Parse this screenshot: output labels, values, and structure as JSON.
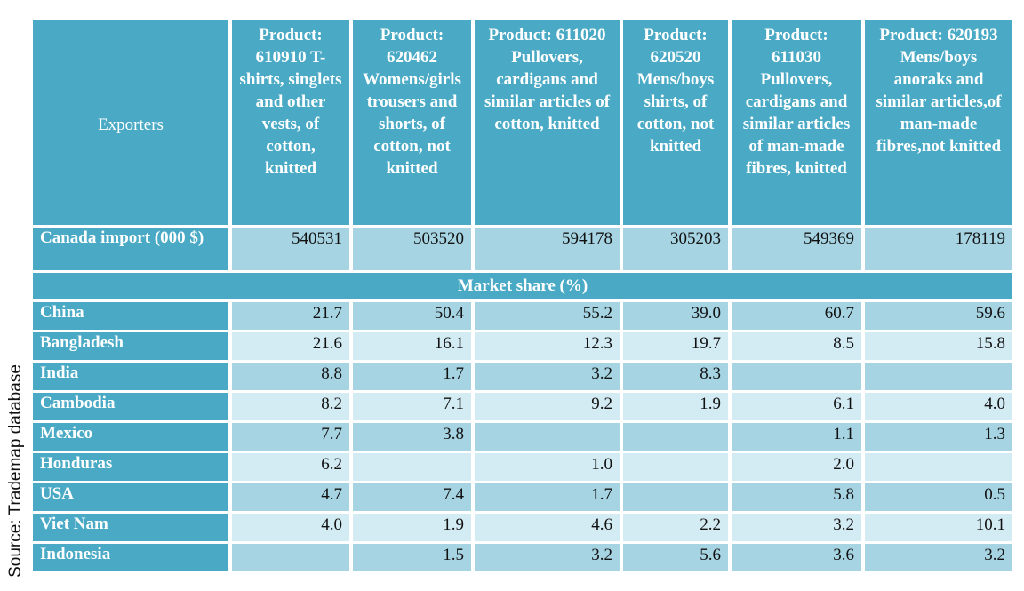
{
  "source": "Source: Trademap database",
  "header": {
    "exporters": "Exporters",
    "products": [
      "Product: 610910 T-shirts, singlets and other vests, of cotton, knitted",
      "Product: 620462 Womens/girls trousers and shorts, of cotton, not knitted",
      "Product: 611020 Pullovers, cardigans and similar articles of cotton, knitted",
      "Product: 620520 Mens/boys shirts, of cotton, not knitted",
      "Product: 611030 Pullovers, cardigans and similar articles of man-made fibres, knitted",
      "Product: 620193 Mens/boys anoraks and similar articles,of man-made fibres,not knitted"
    ]
  },
  "canada": {
    "label": "Canada import (000 $)",
    "values": [
      "540531",
      "503520",
      "594178",
      "305203",
      "549369",
      "178119"
    ]
  },
  "market_share_label": "Market share (%)",
  "rows": [
    {
      "country": "China",
      "values": [
        "21.7",
        "50.4",
        "55.2",
        "39.0",
        "60.7",
        "59.6"
      ]
    },
    {
      "country": "Bangladesh",
      "values": [
        "21.6",
        "16.1",
        "12.3",
        "19.7",
        "8.5",
        "15.8"
      ]
    },
    {
      "country": "India",
      "values": [
        "8.8",
        "1.7",
        "3.2",
        "8.3",
        "",
        ""
      ]
    },
    {
      "country": "Cambodia",
      "values": [
        "8.2",
        "7.1",
        "9.2",
        "1.9",
        "6.1",
        "4.0"
      ]
    },
    {
      "country": "Mexico",
      "values": [
        "7.7",
        "3.8",
        "",
        "",
        "1.1",
        "1.3"
      ]
    },
    {
      "country": "Honduras",
      "values": [
        "6.2",
        "",
        "1.0",
        "",
        "2.0",
        ""
      ]
    },
    {
      "country": "USA",
      "values": [
        "4.7",
        "7.4",
        "1.7",
        "",
        "5.8",
        "0.5"
      ]
    },
    {
      "country": "Viet Nam",
      "values": [
        "4.0",
        "1.9",
        "4.6",
        "2.2",
        "3.2",
        "10.1"
      ]
    },
    {
      "country": "Indonesia",
      "values": [
        "",
        "1.5",
        "3.2",
        "5.6",
        "3.6",
        "3.2"
      ]
    }
  ]
}
